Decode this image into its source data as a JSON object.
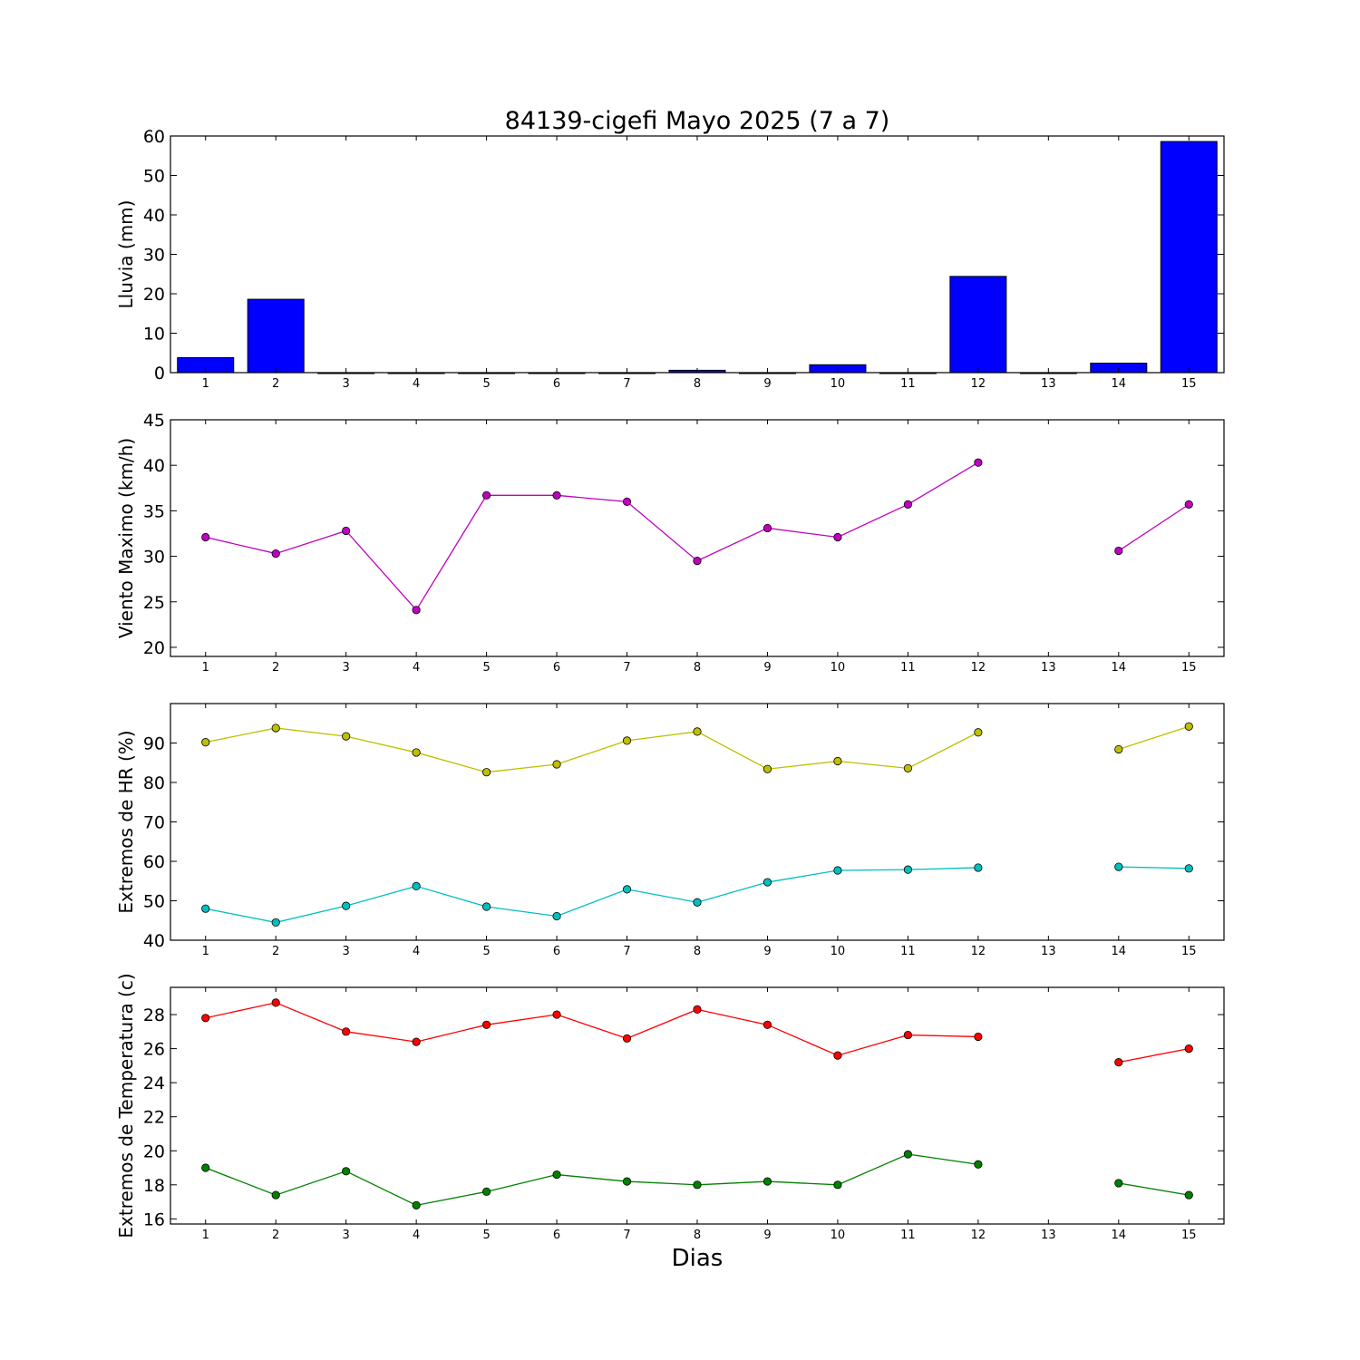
{
  "chart_data": [
    {
      "type": "bar",
      "title": "84139-cigefi Mayo 2025  (7 a 7)",
      "ylabel": "Lluvia (mm)",
      "xlabel": "",
      "ylim": [
        0,
        60
      ],
      "yticks": [
        0,
        10,
        20,
        30,
        40,
        50,
        60
      ],
      "categories": [
        "1",
        "2",
        "3",
        "4",
        "5",
        "6",
        "7",
        "8",
        "9",
        "10",
        "11",
        "12",
        "13",
        "14",
        "15"
      ],
      "series": [
        {
          "values": [
            3.8,
            18.6,
            0,
            0,
            0,
            0,
            0,
            0.6,
            0,
            2.0,
            0,
            24.4,
            0,
            2.4,
            58.6
          ],
          "color": "#0000ff"
        }
      ]
    },
    {
      "type": "line",
      "ylabel": "Viento Maximo (km/h)",
      "ylim": [
        19,
        45
      ],
      "yticks": [
        20,
        25,
        30,
        35,
        40,
        45
      ],
      "categories": [
        "1",
        "2",
        "3",
        "4",
        "5",
        "6",
        "7",
        "8",
        "9",
        "10",
        "11",
        "12",
        "13",
        "14",
        "15"
      ],
      "series": [
        {
          "values": [
            32.1,
            30.3,
            32.8,
            24.1,
            36.7,
            36.7,
            36.0,
            29.5,
            33.1,
            32.1,
            35.7,
            40.3,
            null,
            30.6,
            35.7
          ],
          "color": "#bf00bf"
        }
      ]
    },
    {
      "type": "line",
      "ylabel": "Extremos de HR (%)",
      "ylim": [
        40,
        100
      ],
      "yticks": [
        40,
        50,
        60,
        70,
        80,
        90
      ],
      "categories": [
        "1",
        "2",
        "3",
        "4",
        "5",
        "6",
        "7",
        "8",
        "9",
        "10",
        "11",
        "12",
        "13",
        "14",
        "15"
      ],
      "series": [
        {
          "values": [
            90.2,
            93.8,
            91.7,
            87.6,
            82.6,
            84.6,
            90.6,
            92.9,
            83.4,
            85.4,
            83.6,
            92.7,
            null,
            88.4,
            94.2
          ],
          "color": "#bfbf00"
        },
        {
          "values": [
            48.0,
            44.5,
            48.7,
            53.7,
            48.5,
            46.1,
            52.9,
            49.6,
            54.7,
            57.7,
            57.9,
            58.4,
            null,
            58.6,
            58.2
          ],
          "color": "#00bfbf"
        }
      ]
    },
    {
      "type": "line",
      "ylabel": "Extremos de Temperatura (c)",
      "xlabel": "Dias",
      "ylim": [
        15.7,
        29.6
      ],
      "yticks": [
        16,
        18,
        20,
        22,
        24,
        26,
        28
      ],
      "categories": [
        "1",
        "2",
        "3",
        "4",
        "5",
        "6",
        "7",
        "8",
        "9",
        "10",
        "11",
        "12",
        "13",
        "14",
        "15"
      ],
      "series": [
        {
          "values": [
            27.8,
            28.7,
            27.0,
            26.4,
            27.4,
            28.0,
            26.6,
            28.3,
            27.4,
            25.6,
            26.8,
            26.7,
            null,
            25.2,
            26.0
          ],
          "color": "#ff0000"
        },
        {
          "values": [
            19.0,
            17.4,
            18.8,
            16.8,
            17.6,
            18.6,
            18.2,
            18.0,
            18.2,
            18.0,
            19.8,
            19.2,
            null,
            18.1,
            17.4
          ],
          "color": "#008000"
        }
      ]
    }
  ]
}
